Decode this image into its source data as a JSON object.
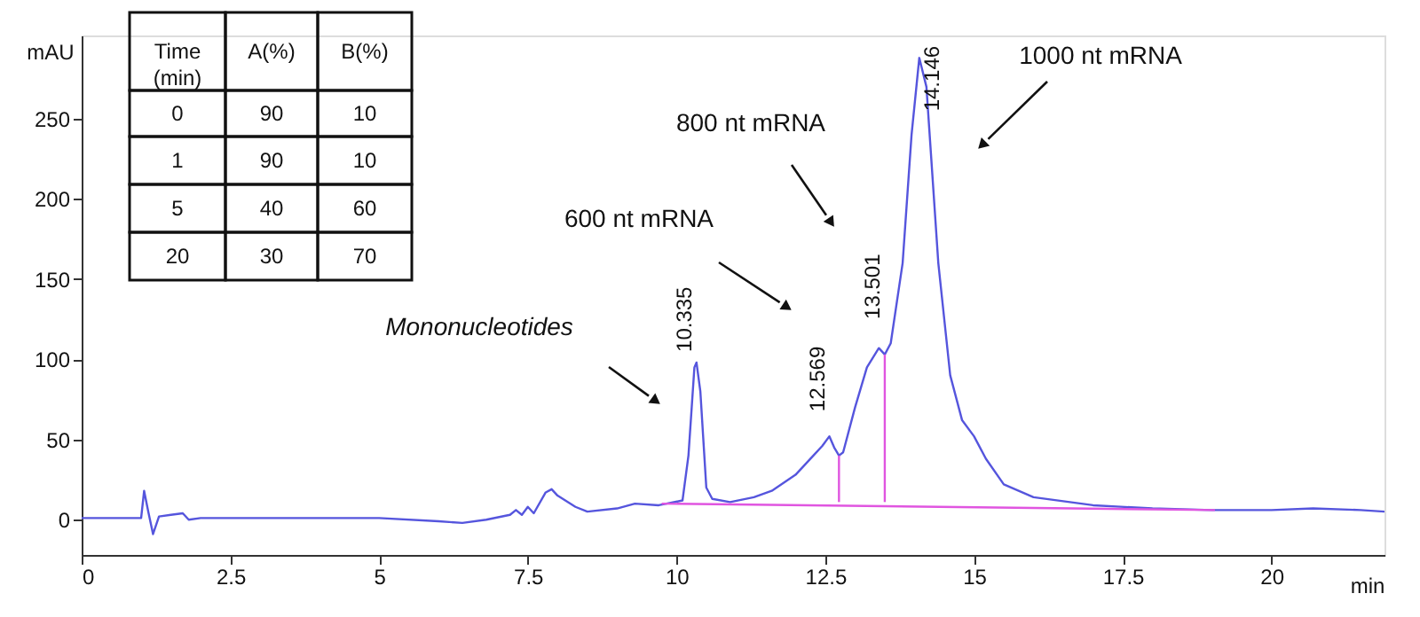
{
  "chart_data": {
    "type": "line",
    "xlabel": "min",
    "ylabel": "mAU",
    "xlim": [
      0,
      21.9
    ],
    "ylim": [
      -22,
      302
    ],
    "xticks": [
      0,
      2.5,
      5,
      7.5,
      10,
      12.5,
      15,
      17.5,
      20
    ],
    "yticks": [
      0,
      50,
      100,
      150,
      200,
      250
    ],
    "grid": false,
    "marker": "none",
    "line_style": "solid",
    "series": [
      {
        "color": "#5555dd",
        "x": [
          0,
          1.0,
          1.05,
          1.12,
          1.2,
          1.3,
          1.5,
          1.7,
          1.8,
          2.0,
          3,
          5,
          6,
          6.4,
          6.8,
          7.2,
          7.3,
          7.4,
          7.5,
          7.6,
          7.8,
          7.9,
          8.0,
          8.3,
          8.5,
          9.0,
          9.3,
          9.7,
          10.1,
          10.2,
          10.3,
          10.335,
          10.4,
          10.5,
          10.6,
          10.9,
          11.3,
          11.6,
          12.0,
          12.3,
          12.45,
          12.569,
          12.65,
          12.73,
          12.8,
          13.0,
          13.2,
          13.4,
          13.5,
          13.6,
          13.8,
          13.95,
          14.08,
          14.2,
          14.4,
          14.6,
          14.8,
          15.0,
          15.2,
          15.5,
          16.0,
          17,
          18,
          19,
          20,
          20.7,
          21.5,
          21.9
        ],
        "values": [
          1,
          1,
          18,
          5,
          -9,
          2,
          3,
          4,
          0,
          1,
          1,
          1,
          -1,
          -2,
          0,
          3,
          6,
          3,
          8,
          4,
          17,
          19,
          15,
          8,
          5,
          7,
          10,
          9,
          12,
          40,
          95,
          98,
          80,
          20,
          13,
          11,
          14,
          18,
          28,
          40,
          46,
          52,
          45,
          40,
          42,
          70,
          95,
          107,
          103,
          110,
          160,
          240,
          288,
          270,
          160,
          90,
          62,
          52,
          38,
          22,
          14,
          9,
          7,
          6,
          6,
          7,
          6,
          5
        ]
      },
      {
        "color": "#e055e0",
        "x": [
          9.75,
          19.05
        ],
        "values": [
          10,
          6
        ]
      },
      {
        "color": "#e055e0",
        "x": [
          12.73,
          12.73
        ],
        "values": [
          11,
          40
        ]
      },
      {
        "color": "#e055e0",
        "x": [
          13.5,
          13.5
        ],
        "values": [
          11,
          103
        ]
      }
    ],
    "annotations": [
      {
        "text": "10.335",
        "x": 10.335,
        "y": 98
      },
      {
        "text": "12.569",
        "x": 12.569,
        "y": 52
      },
      {
        "text": "13.501",
        "x": 13.501,
        "y": 103
      },
      {
        "text": "14.146",
        "x": 14.146,
        "y": 288
      },
      "Mononucleotides",
      "600 nt mRNA",
      "800 nt mRNA",
      "1000 nt mRNA",
      "Time (min)",
      "A(%)",
      "B(%)",
      "0",
      "90",
      "10",
      "1",
      "90",
      "10",
      "5",
      "40",
      "60",
      "20",
      "30",
      "70"
    ]
  }
}
